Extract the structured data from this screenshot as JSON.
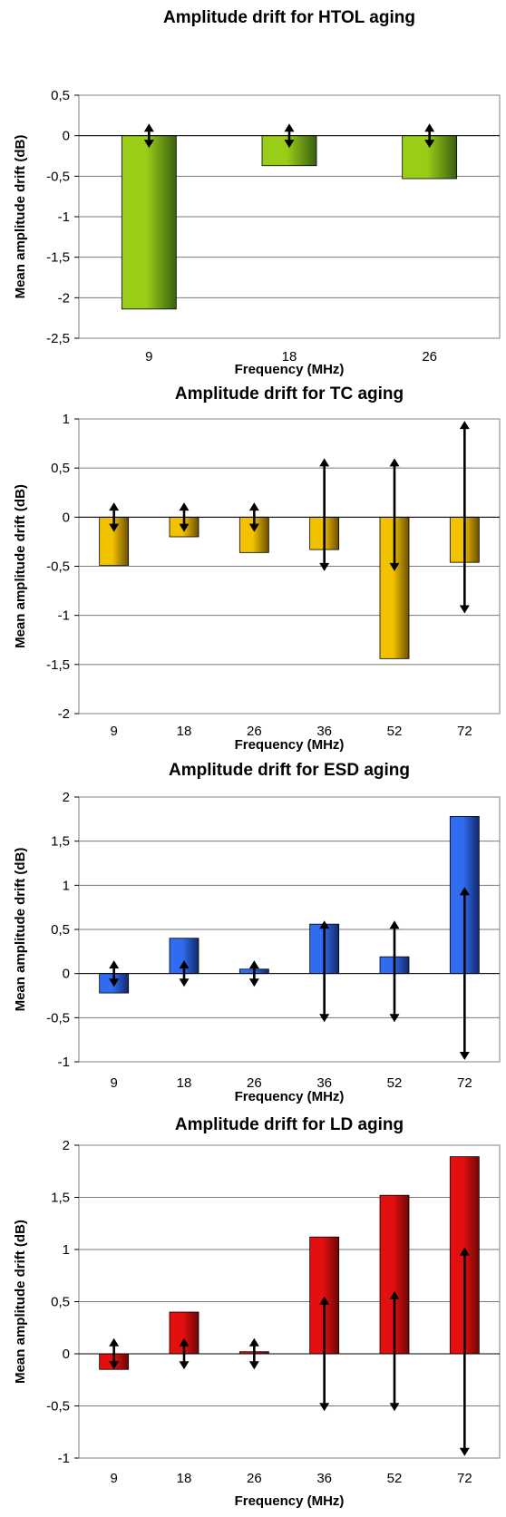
{
  "chart_data": [
    {
      "type": "bar",
      "title": "Amplitude drift for HTOL aging",
      "xlabel": "Frequency (MHz)",
      "ylabel": "Mean amplitude drift (dB)",
      "categories": [
        "9",
        "18",
        "26"
      ],
      "values": [
        -2.14,
        -0.37,
        -0.53
      ],
      "error_range": [
        [
          -0.15,
          0.15
        ],
        [
          -0.15,
          0.15
        ],
        [
          -0.15,
          0.15
        ]
      ],
      "ylim": [
        -2.5,
        0.5
      ],
      "yticks": [
        0.5,
        0,
        -0.5,
        -1,
        -1.5,
        -2,
        -2.5
      ],
      "ytick_labels": [
        "0,5",
        "0",
        "-0,5",
        "-1",
        "-1,5",
        "-2",
        "-2,5"
      ],
      "color": "#9acd17",
      "color_dark": "#3a6010",
      "grid": true
    },
    {
      "type": "bar",
      "title": "Amplitude drift for TC aging",
      "xlabel": "Frequency (MHz)",
      "ylabel": "Mean amplitude drift (dB)",
      "categories": [
        "9",
        "18",
        "26",
        "36",
        "52",
        "72"
      ],
      "values": [
        -0.49,
        -0.2,
        -0.36,
        -0.33,
        -1.44,
        -0.46
      ],
      "error_range": [
        [
          -0.15,
          0.15
        ],
        [
          -0.15,
          0.15
        ],
        [
          -0.15,
          0.15
        ],
        [
          -0.55,
          0.6
        ],
        [
          -0.55,
          0.6
        ],
        [
          -0.98,
          0.98
        ]
      ],
      "ylim": [
        -2,
        1
      ],
      "yticks": [
        1,
        0.5,
        0,
        -0.5,
        -1,
        -1.5,
        -2
      ],
      "ytick_labels": [
        "1",
        "0,5",
        "0",
        "-0,5",
        "-1",
        "-1,5",
        "-2"
      ],
      "color": "#f2c200",
      "color_dark": "#6b4f00",
      "grid": true
    },
    {
      "type": "bar",
      "title": "Amplitude drift for ESD aging",
      "xlabel": "Frequency (MHz)",
      "ylabel": "Mean amplitude drift (dB)",
      "categories": [
        "9",
        "18",
        "26",
        "36",
        "52",
        "72"
      ],
      "values": [
        -0.22,
        0.4,
        0.05,
        0.56,
        0.19,
        1.78
      ],
      "error_range": [
        [
          -0.15,
          0.15
        ],
        [
          -0.15,
          0.15
        ],
        [
          -0.15,
          0.15
        ],
        [
          -0.55,
          0.6
        ],
        [
          -0.55,
          0.6
        ],
        [
          -0.98,
          0.98
        ]
      ],
      "ylim": [
        -1,
        2
      ],
      "yticks": [
        2,
        1.5,
        1,
        0.5,
        0,
        -0.5,
        -1
      ],
      "ytick_labels": [
        "2",
        "1,5",
        "1",
        "0,5",
        "0",
        "-0,5",
        "-1"
      ],
      "color": "#2f6cf0",
      "color_dark": "#13286a",
      "grid": true
    },
    {
      "type": "bar",
      "title": "Amplitude drift for LD aging",
      "xlabel": "Frequency (MHz)",
      "ylabel": "Mean amplitude drift (dB)",
      "categories": [
        "9",
        "18",
        "26",
        "36",
        "52",
        "72"
      ],
      "values": [
        -0.15,
        0.4,
        0.02,
        1.12,
        1.52,
        1.89
      ],
      "error_range": [
        [
          -0.15,
          0.15
        ],
        [
          -0.15,
          0.15
        ],
        [
          -0.15,
          0.15
        ],
        [
          -0.55,
          0.55
        ],
        [
          -0.55,
          0.6
        ],
        [
          -0.98,
          1.02
        ]
      ],
      "ylim": [
        -1,
        2
      ],
      "yticks": [
        2,
        1.5,
        1,
        0.5,
        0,
        -0.5,
        -1
      ],
      "ytick_labels": [
        "2",
        "1,5",
        "1",
        "0,5",
        "0",
        "-0,5",
        "-1"
      ],
      "color": "#e41010",
      "color_dark": "#6e0606",
      "grid": true
    }
  ]
}
